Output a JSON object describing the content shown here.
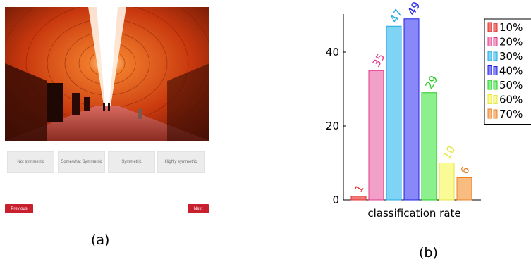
{
  "panel_a": {
    "choices": [
      "Not symmetric",
      "Somewhat Symmetric",
      "Symmetric",
      "Highly symmetric"
    ],
    "previous_label": "Previous",
    "next_label": "Next",
    "caption": "(a)"
  },
  "panel_b": {
    "caption": "(b)"
  },
  "chart_data": {
    "type": "bar",
    "title": "",
    "xlabel": "classification rate",
    "ylabel": "",
    "ylim": [
      0,
      50
    ],
    "yticks": [
      0,
      20,
      40
    ],
    "grid": false,
    "legend_position": "right",
    "series": [
      {
        "name": "10%",
        "value": 1,
        "fill": "#f07a7a",
        "stroke": "#e03030",
        "label_color": "#e03030"
      },
      {
        "name": "20%",
        "value": 35,
        "fill": "#f2a0c8",
        "stroke": "#e0388a",
        "label_color": "#e0388a"
      },
      {
        "name": "30%",
        "value": 47,
        "fill": "#7fd4f5",
        "stroke": "#20a8e0",
        "label_color": "#20a8e0"
      },
      {
        "name": "40%",
        "value": 49,
        "fill": "#8888f8",
        "stroke": "#2020e8",
        "label_color": "#2020e8"
      },
      {
        "name": "50%",
        "value": 29,
        "fill": "#8cf08c",
        "stroke": "#22cc22",
        "label_color": "#22cc22"
      },
      {
        "name": "60%",
        "value": 10,
        "fill": "#fafa96",
        "stroke": "#e6e640",
        "label_color": "#e6e640"
      },
      {
        "name": "70%",
        "value": 6,
        "fill": "#f8bc80",
        "stroke": "#e8802a",
        "label_color": "#e8802a"
      }
    ]
  }
}
